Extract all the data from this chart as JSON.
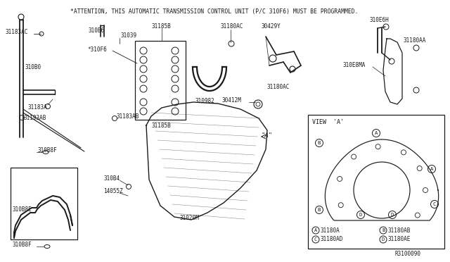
{
  "background_color": "#ffffff",
  "attention_text": "*ATTENTION, THIS AUTOMATIC TRANSMISSION CONTROL UNIT (P/C 310F6) MUST BE PROGRAMMED.",
  "diagram_id": "R3100090",
  "fig_width": 6.4,
  "fig_height": 3.72,
  "dpi": 100,
  "view_a_title": "VIEW  'A'",
  "view_a_legend": [
    [
      "A",
      "31180A"
    ],
    [
      "B",
      "31180AB"
    ],
    [
      "C",
      "31180AD"
    ],
    [
      "D",
      "31180AE"
    ]
  ],
  "line_color": "#1a1a1a",
  "text_color": "#1a1a1a",
  "label_fontsize": 5.5,
  "attention_fontsize": 5.8
}
